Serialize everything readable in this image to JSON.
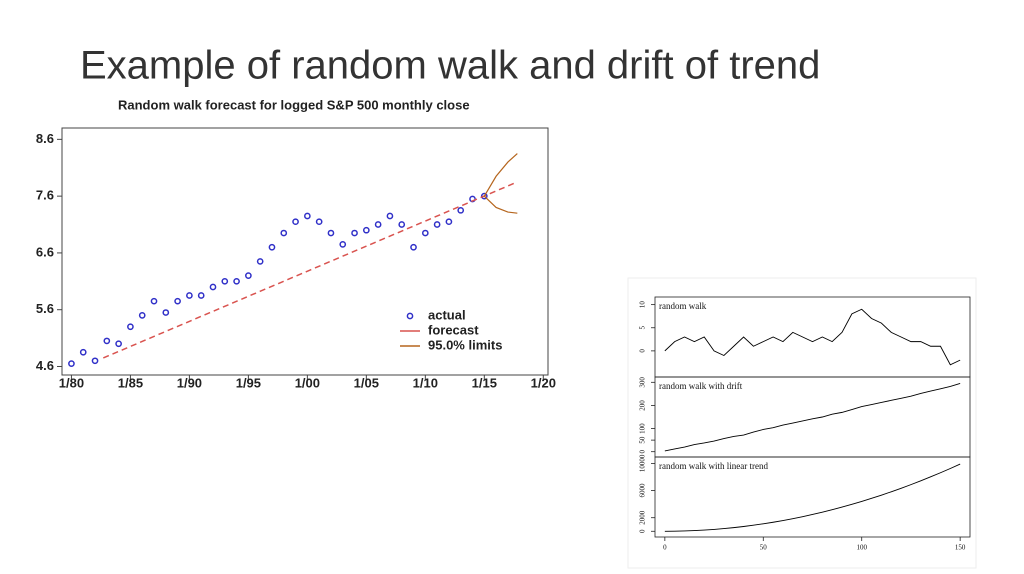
{
  "title": "Example of random walk and drift of trend",
  "chart_data": [
    {
      "type": "line",
      "title": "Random walk forecast for logged S&P 500 monthly close",
      "xlim": [
        1979.2,
        2020.4
      ],
      "ylim": [
        4.45,
        8.8
      ],
      "xticks": [
        {
          "value": 1980,
          "label": "1/80"
        },
        {
          "value": 1985,
          "label": "1/85"
        },
        {
          "value": 1990,
          "label": "1/90"
        },
        {
          "value": 1995,
          "label": "1/95"
        },
        {
          "value": 2000,
          "label": "1/00"
        },
        {
          "value": 2005,
          "label": "1/05"
        },
        {
          "value": 2010,
          "label": "1/10"
        },
        {
          "value": 2015,
          "label": "1/15"
        },
        {
          "value": 2020,
          "label": "1/20"
        }
      ],
      "yticks": [
        4.6,
        5.6,
        6.6,
        7.6,
        8.6
      ],
      "legend": "lower right",
      "series": [
        {
          "name": "actual",
          "type": "scatter",
          "color": "#3030c8",
          "x": [
            1980,
            1981,
            1982,
            1983,
            1984,
            1985,
            1986,
            1987,
            1988,
            1989,
            1990,
            1991,
            1992,
            1993,
            1994,
            1995,
            1996,
            1997,
            1998,
            1999,
            2000,
            2001,
            2002,
            2003,
            2004,
            2005,
            2006,
            2007,
            2008,
            2009,
            2010,
            2011,
            2012,
            2013,
            2014,
            2015
          ],
          "values": [
            4.65,
            4.85,
            4.7,
            5.05,
            5.0,
            5.3,
            5.5,
            5.75,
            5.55,
            5.75,
            5.85,
            5.85,
            6.0,
            6.1,
            6.1,
            6.2,
            6.45,
            6.7,
            6.95,
            7.15,
            7.25,
            7.15,
            6.95,
            6.75,
            6.95,
            7.0,
            7.1,
            7.25,
            7.1,
            6.7,
            6.95,
            7.1,
            7.15,
            7.35,
            7.55,
            7.6
          ]
        },
        {
          "name": "forecast",
          "type": "line",
          "color": "#d9534f",
          "x": [
            1982.7,
            2017.8
          ],
          "values": [
            4.75,
            7.85
          ]
        },
        {
          "name": "95.0% limits",
          "type": "band",
          "color": "#b5651d",
          "x": [
            2015,
            2016,
            2017,
            2017.8
          ],
          "upper": [
            7.6,
            7.95,
            8.2,
            8.35
          ],
          "lower": [
            7.6,
            7.4,
            7.32,
            7.3
          ]
        }
      ]
    },
    {
      "type": "panels",
      "xlim": [
        -5,
        155
      ],
      "xticks": [
        0,
        50,
        100,
        150
      ],
      "color": "#000000",
      "x": [
        0,
        5,
        10,
        15,
        20,
        25,
        30,
        35,
        40,
        45,
        50,
        55,
        60,
        65,
        70,
        75,
        80,
        85,
        90,
        95,
        100,
        105,
        110,
        115,
        120,
        125,
        130,
        135,
        140,
        145,
        150
      ],
      "panels": [
        {
          "title": "random walk",
          "ylim": [
            -5,
            11
          ],
          "yticks": [
            0,
            5,
            10
          ],
          "values": [
            0,
            2,
            3,
            2,
            3,
            0,
            -1,
            1,
            3,
            1,
            2,
            3,
            2,
            4,
            3,
            2,
            3,
            2,
            4,
            8,
            9,
            7,
            6,
            4,
            3,
            2,
            2,
            1,
            1,
            -3,
            -2
          ]
        },
        {
          "title": "random walk with drift",
          "ylim": [
            -10,
            310
          ],
          "yticks": [
            0,
            50,
            100,
            200,
            300
          ],
          "values": [
            3,
            12,
            20,
            31,
            38,
            46,
            57,
            66,
            72,
            85,
            96,
            104,
            115,
            124,
            133,
            142,
            150,
            162,
            170,
            182,
            195,
            204,
            213,
            222,
            231,
            240,
            252,
            262,
            272,
            282,
            295
          ]
        },
        {
          "title": "random walk with linear trend",
          "ylim": [
            -400,
            10500
          ],
          "yticks": [
            0,
            2000,
            6000,
            10000
          ],
          "values": [
            0,
            11,
            44,
            99,
            176,
            275,
            396,
            539,
            704,
            891,
            1100,
            1331,
            1584,
            1859,
            2156,
            2475,
            2816,
            3179,
            3564,
            3971,
            4400,
            4851,
            5324,
            5819,
            6336,
            6875,
            7436,
            8019,
            8624,
            9251,
            9900
          ]
        }
      ]
    }
  ]
}
